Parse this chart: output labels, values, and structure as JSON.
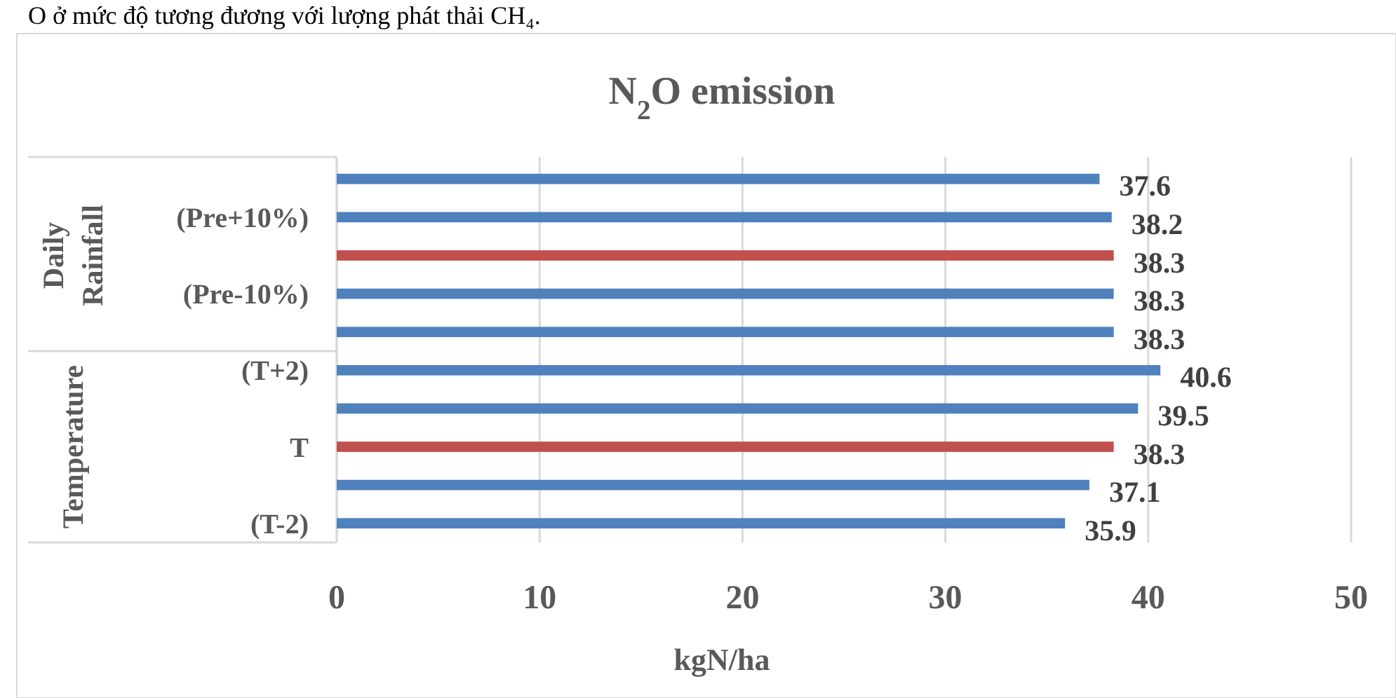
{
  "chart_data": {
    "type": "bar",
    "orientation": "horizontal",
    "title": "N$_{2}$O emission",
    "xlabel": "kgN/ha",
    "categories": [
      null,
      "(Pre+10%)",
      null,
      "(Pre-10%)",
      null,
      "(T+2)",
      null,
      "T",
      null,
      "(T-2)"
    ],
    "values": [
      37.6,
      38.2,
      38.3,
      38.3,
      38.3,
      40.6,
      39.5,
      38.3,
      37.1,
      35.9
    ],
    "colors": [
      "#4f81bd",
      "#4f81bd",
      "#c0504d",
      "#4f81bd",
      "#4f81bd",
      "#4f81bd",
      "#4f81bd",
      "#c0504d",
      "#4f81bd",
      "#4f81bd"
    ],
    "xlim": [
      0,
      50
    ],
    "xticks": [
      0,
      10,
      20,
      30,
      40,
      50
    ],
    "grid": "x",
    "data_labels": true,
    "annotations": [
      "O ở mức độ tương đương với lượng phát thải CH₄.",
      "Daily Rainfall",
      "Temperature"
    ]
  }
}
